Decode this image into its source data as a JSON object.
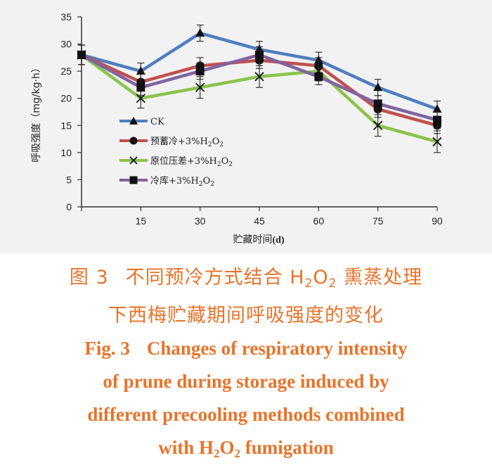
{
  "chart_data": {
    "type": "line",
    "xlabel": "贮藏时间(d)",
    "ylabel": "呼吸强度(mg/kg·h)",
    "x": [
      0,
      15,
      30,
      45,
      60,
      75,
      90
    ],
    "x_tick_labels": [
      "",
      "15",
      "30",
      "45",
      "60",
      "75",
      "90"
    ],
    "ylim": [
      0,
      35
    ],
    "y_ticks": [
      0,
      5,
      10,
      15,
      20,
      25,
      30,
      35
    ],
    "legend_position": "left-middle",
    "series": [
      {
        "name": "CK",
        "color": "#4f7ec0",
        "marker": "triangle",
        "values": [
          28,
          25,
          32,
          29,
          27,
          22,
          18
        ],
        "errors": [
          1.8,
          1.5,
          1.5,
          1.5,
          1.5,
          1.5,
          1.5
        ]
      },
      {
        "name": "预蓄冷+3%H2O2",
        "color": "#c0504d",
        "marker": "circle",
        "values": [
          28,
          23,
          26,
          27,
          26,
          18,
          15
        ],
        "errors": [
          1.8,
          1.5,
          1.5,
          1.5,
          1.5,
          1.5,
          1.5
        ]
      },
      {
        "name": "原位压差+3%H2O2",
        "color": "#8bc34a",
        "marker": "cross",
        "values": [
          28,
          20,
          22,
          24,
          25,
          15,
          12
        ],
        "errors": [
          1.8,
          1.8,
          2,
          2,
          1.8,
          2,
          2
        ]
      },
      {
        "name": "冷库+3%H2O2",
        "color": "#8064a2",
        "marker": "square",
        "values": [
          28,
          22,
          25,
          28,
          24,
          19,
          16
        ],
        "errors": [
          1.8,
          1.5,
          1.5,
          1.5,
          1.5,
          1.5,
          1.5
        ]
      }
    ]
  },
  "legend": {
    "s1": "CK",
    "s2_prefix": "预蓄冷+3%H",
    "s2_sub1": "2",
    "s2_mid": "O",
    "s2_sub2": "2",
    "s3_prefix": "原位压差+3%H",
    "s3_sub1": "2",
    "s3_mid": "O",
    "s3_sub2": "2",
    "s4_prefix": "冷库+3%H",
    "s4_sub1": "2",
    "s4_mid": "O",
    "s4_sub2": "2"
  },
  "axes": {
    "ylabel": "呼吸强度（mg/kg·h）",
    "xlabel_main": "贮藏时间",
    "xlabel_unit": "(d)"
  },
  "caption": {
    "cn_line1_a": "图 3",
    "cn_line1_b": "不同预冷方式结合 H",
    "cn_line1_sub1": "2",
    "cn_line1_c": "O",
    "cn_line1_sub2": "2",
    "cn_line1_d": " 熏蒸处理",
    "cn_line2": "下西梅贮藏期间呼吸强度的变化",
    "en_line1_a": "Fig. 3",
    "en_line1_b": "Changes of respiratory intensity",
    "en_line2": "of prune during storage induced by",
    "en_line3": "different precooling methods combined",
    "en_line4_a": "with H",
    "en_line4_sub1": "2",
    "en_line4_b": "O",
    "en_line4_sub2": "2",
    "en_line4_c": " fumigation"
  }
}
